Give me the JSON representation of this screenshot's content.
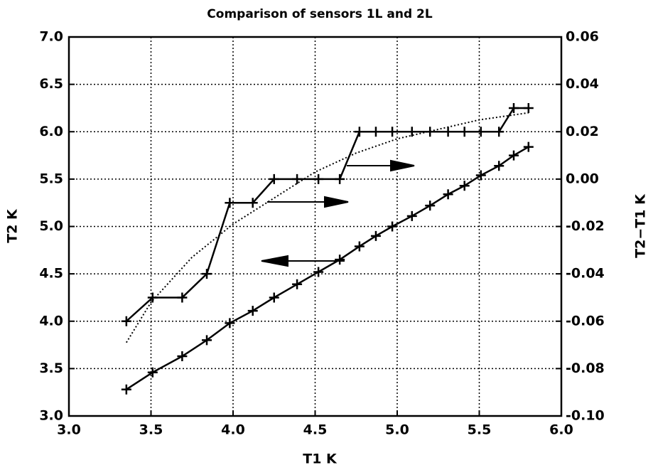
{
  "chart_data": {
    "type": "line",
    "title": "Comparison of sensors 1L and 2L",
    "xlabel": "T1  K",
    "ylabel": "T2  K",
    "y2label": "T2−T1  K",
    "xlim": [
      3.0,
      6.0
    ],
    "xticks": [
      {
        "value": 3.0,
        "label": "3.0"
      },
      {
        "value": 3.5,
        "label": "3.5"
      },
      {
        "value": 4.0,
        "label": "4.0"
      },
      {
        "value": 4.5,
        "label": "4.5"
      },
      {
        "value": 5.0,
        "label": "5.0"
      },
      {
        "value": 5.5,
        "label": "5.5"
      },
      {
        "value": 6.0,
        "label": "6.0"
      }
    ],
    "ylim": [
      3.0,
      7.0
    ],
    "yticks": [
      {
        "value": 3.0,
        "label": "3.0"
      },
      {
        "value": 3.5,
        "label": "3.5"
      },
      {
        "value": 4.0,
        "label": "4.0"
      },
      {
        "value": 4.5,
        "label": "4.5"
      },
      {
        "value": 5.0,
        "label": "5.0"
      },
      {
        "value": 5.5,
        "label": "5.5"
      },
      {
        "value": 6.0,
        "label": "6.0"
      },
      {
        "value": 6.5,
        "label": "6.5"
      },
      {
        "value": 7.0,
        "label": "7.0"
      }
    ],
    "y2lim": [
      -0.1,
      0.06
    ],
    "y2ticks": [
      {
        "value": -0.1,
        "label": "-0.10"
      },
      -0.08,
      -0.06,
      -0.04,
      -0.02,
      {
        "value": 0.0,
        "label": "0.00"
      },
      0.02,
      0.04,
      0.06
    ],
    "grid": true,
    "series": [
      {
        "color": "#000000",
        "markers": true,
        "style": "solid",
        "x": [
          3.35,
          3.51,
          3.69,
          3.84,
          3.98,
          4.12,
          4.25,
          4.39,
          4.52,
          4.65,
          4.77,
          4.87,
          4.97,
          5.09,
          5.2,
          5.31,
          5.41,
          5.51,
          5.62,
          5.71,
          5.8
        ],
        "values": [
          3.28,
          3.46,
          3.63,
          3.8,
          3.98,
          4.11,
          4.25,
          4.39,
          4.52,
          4.65,
          4.79,
          4.9,
          5.0,
          5.11,
          5.22,
          5.34,
          5.43,
          5.54,
          5.64,
          5.75,
          5.84
        ]
      },
      {
        "color": "#000000",
        "markers": true,
        "style": "solid",
        "axis": "y2",
        "x": [
          3.35,
          3.51,
          3.69,
          3.84,
          3.98,
          4.12,
          4.25,
          4.39,
          4.52,
          4.65,
          4.77,
          4.87,
          4.97,
          5.09,
          5.2,
          5.31,
          5.41,
          5.51,
          5.62,
          5.71,
          5.8
        ],
        "values": [
          -0.06,
          -0.05,
          -0.05,
          -0.04,
          -0.01,
          -0.01,
          0.0,
          0.0,
          0.0,
          0.0,
          0.02,
          0.02,
          0.02,
          0.02,
          0.02,
          0.02,
          0.02,
          0.02,
          0.02,
          0.03,
          0.03
        ]
      },
      {
        "color": "#000000",
        "markers": false,
        "style": "dotted",
        "axis": "y2",
        "x": [
          3.35,
          3.5,
          3.75,
          4.0,
          4.25,
          4.5,
          4.75,
          5.0,
          5.25,
          5.5,
          5.8
        ],
        "values": [
          -0.069,
          -0.052,
          -0.033,
          -0.019,
          -0.008,
          0.003,
          0.011,
          0.017,
          0.021,
          0.025,
          0.028
        ]
      }
    ]
  }
}
